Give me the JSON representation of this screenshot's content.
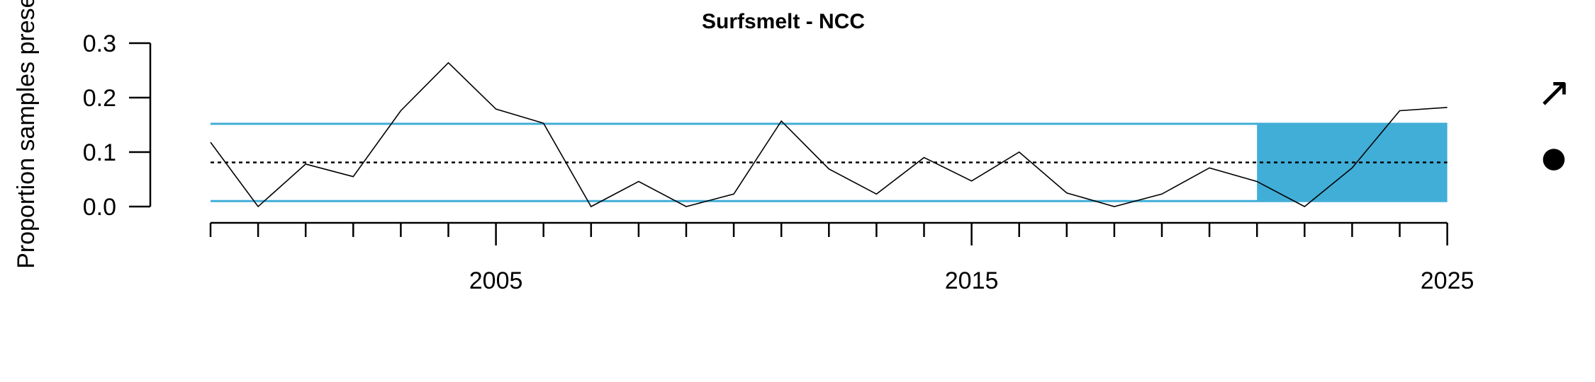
{
  "chart_data": {
    "type": "line",
    "title": "Surfsmelt - NCC",
    "ylabel": "Proportion samples present",
    "xlabel": "",
    "xlim": [
      1998.5,
      2025
    ],
    "ylim": [
      0.0,
      0.3
    ],
    "x_ticks_major": [
      2005,
      2015,
      2025
    ],
    "y_ticks": [
      "0.0",
      "0.1",
      "0.2",
      "0.3"
    ],
    "series": [
      {
        "x": [
          1999,
          2000,
          2001,
          2002,
          2003,
          2004,
          2005,
          2006,
          2007,
          2008,
          2009,
          2010,
          2011,
          2012,
          2013,
          2014,
          2015,
          2016,
          2017,
          2018,
          2019,
          2020,
          2021,
          2022,
          2023,
          2024,
          2025
        ],
        "values": [
          0.118,
          0.0,
          0.078,
          0.055,
          0.176,
          0.264,
          0.179,
          0.153,
          0.0,
          0.046,
          0.0,
          0.023,
          0.157,
          0.069,
          0.023,
          0.09,
          0.047,
          0.1,
          0.025,
          0.0,
          0.023,
          0.071,
          0.046,
          0.0,
          0.071,
          0.176,
          0.182
        ]
      }
    ],
    "mean": 0.081,
    "upper_sd": 0.152,
    "lower_sd": 0.01,
    "highlight_x_range": [
      2021,
      2025
    ],
    "trend_symbol": "↗",
    "mean_symbol": "●",
    "colors": {
      "line": "#000000",
      "sd_lines": "#41aed7",
      "highlight": "#41aed7",
      "mean_line": "#000000"
    },
    "grid": false,
    "legend": "none"
  }
}
